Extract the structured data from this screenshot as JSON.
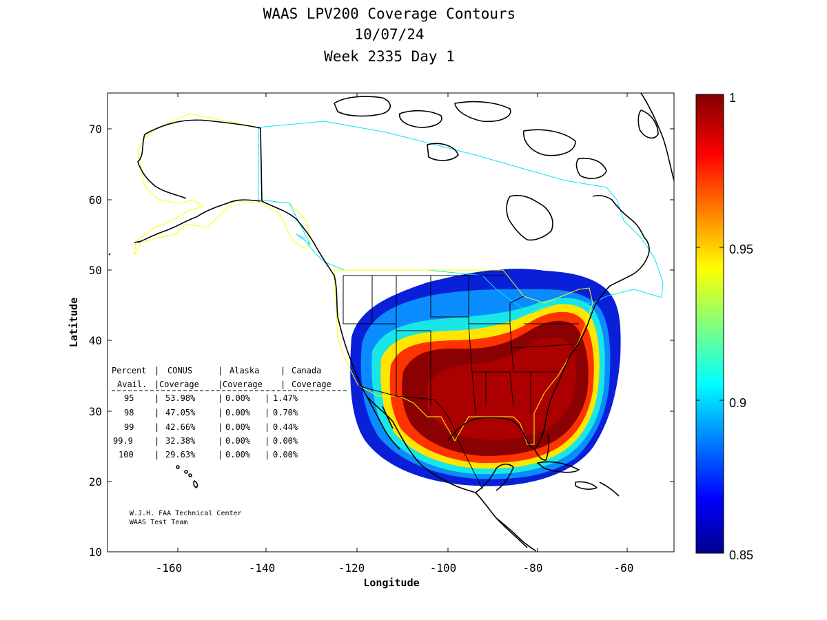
{
  "title": {
    "line1": "WAAS LPV200 Coverage Contours",
    "line2": "10/07/24",
    "line3": "Week 2335 Day 1"
  },
  "axes": {
    "xlabel": "Longitude",
    "ylabel": "Latitude",
    "x_ticks": [
      "-160",
      "-140",
      "-120",
      "-100",
      "-80",
      "-60"
    ],
    "y_ticks": [
      "10",
      "20",
      "30",
      "40",
      "50",
      "60",
      "70"
    ]
  },
  "colorbar": {
    "ticks": [
      "1",
      "0.95",
      "0.9",
      "0.85"
    ],
    "colormap": "jet",
    "range": [
      0.85,
      1
    ]
  },
  "stats_table": {
    "header1": [
      "Percent",
      "CONUS",
      "Alaska",
      "Canada"
    ],
    "header2": [
      "Avail.",
      "Coverage",
      "Coverage",
      "Coverage"
    ],
    "rows": [
      [
        "95",
        "53.98%",
        "0.00%",
        "1.47%"
      ],
      [
        "98",
        "47.05%",
        "0.00%",
        "0.70%"
      ],
      [
        "99",
        "42.66%",
        "0.00%",
        "0.44%"
      ],
      [
        "99.9",
        "32.38%",
        "0.00%",
        "0.00%"
      ],
      [
        "100",
        "29.63%",
        "0.00%",
        "0.00%"
      ]
    ]
  },
  "credit": {
    "line1": "W.J.H. FAA Technical Center",
    "line2": "WAAS Test Team"
  },
  "colors": {
    "alaska_boundary": "#ffff00",
    "canada_boundary": "#00e5ff",
    "coastline": "#000000"
  }
}
